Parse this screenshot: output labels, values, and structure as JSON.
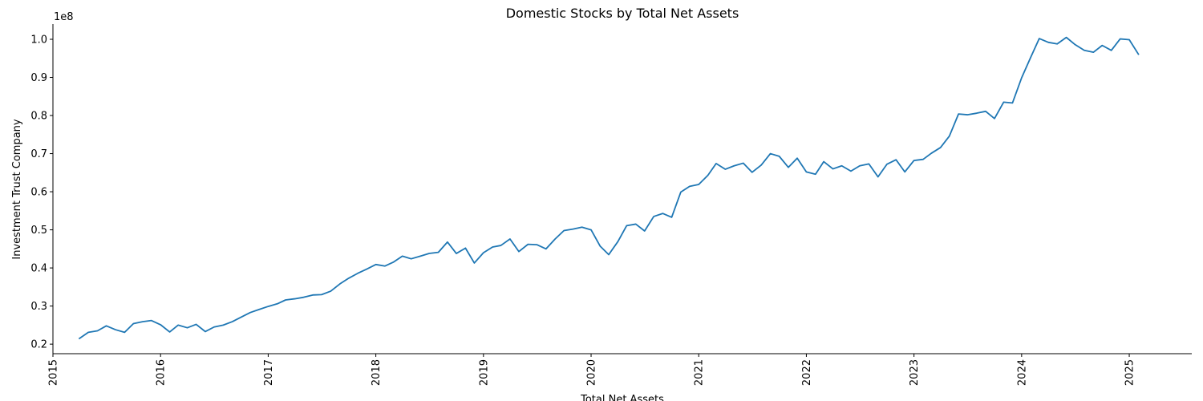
{
  "chart_data": {
    "type": "line",
    "title": "Domestic Stocks by Total Net Assets",
    "xlabel": "Total Net Assets",
    "ylabel": "Investment Trust Company",
    "y_offset_label": "1e8",
    "grid": false,
    "xlim": [
      "2015-01-01",
      "2025-08-01"
    ],
    "ylim": [
      17500000,
      104000000
    ],
    "x_ticks": [
      "2015",
      "2016",
      "2017",
      "2018",
      "2019",
      "2020",
      "2021",
      "2022",
      "2023",
      "2024",
      "2025"
    ],
    "y_ticks": [
      {
        "value": 20000000,
        "label": "0.2"
      },
      {
        "value": 30000000,
        "label": "0.3"
      },
      {
        "value": 40000000,
        "label": "0.4"
      },
      {
        "value": 50000000,
        "label": "0.5"
      },
      {
        "value": 60000000,
        "label": "0.6"
      },
      {
        "value": 70000000,
        "label": "0.7"
      },
      {
        "value": 80000000,
        "label": "0.8"
      },
      {
        "value": 90000000,
        "label": "0.9"
      },
      {
        "value": 100000000,
        "label": "1.0"
      }
    ],
    "series": [
      {
        "color": "#1f77b4",
        "points": [
          [
            "2015-04",
            21500000
          ],
          [
            "2015-05",
            23100000
          ],
          [
            "2015-06",
            23500000
          ],
          [
            "2015-07",
            24800000
          ],
          [
            "2015-08",
            23800000
          ],
          [
            "2015-09",
            23100000
          ],
          [
            "2015-10",
            25400000
          ],
          [
            "2015-11",
            25900000
          ],
          [
            "2015-12",
            26200000
          ],
          [
            "2016-01",
            25100000
          ],
          [
            "2016-02",
            23200000
          ],
          [
            "2016-03",
            25000000
          ],
          [
            "2016-04",
            24300000
          ],
          [
            "2016-05",
            25200000
          ],
          [
            "2016-06",
            23300000
          ],
          [
            "2016-07",
            24500000
          ],
          [
            "2016-08",
            25000000
          ],
          [
            "2016-09",
            25900000
          ],
          [
            "2016-10",
            27100000
          ],
          [
            "2016-11",
            28300000
          ],
          [
            "2016-12",
            29100000
          ],
          [
            "2017-01",
            29900000
          ],
          [
            "2017-02",
            30600000
          ],
          [
            "2017-03",
            31600000
          ],
          [
            "2017-04",
            31900000
          ],
          [
            "2017-05",
            32300000
          ],
          [
            "2017-06",
            32900000
          ],
          [
            "2017-07",
            33000000
          ],
          [
            "2017-08",
            33900000
          ],
          [
            "2017-09",
            35800000
          ],
          [
            "2017-10",
            37300000
          ],
          [
            "2017-11",
            38600000
          ],
          [
            "2017-12",
            39700000
          ],
          [
            "2018-01",
            40900000
          ],
          [
            "2018-02",
            40500000
          ],
          [
            "2018-03",
            41500000
          ],
          [
            "2018-04",
            43100000
          ],
          [
            "2018-05",
            42400000
          ],
          [
            "2018-06",
            43100000
          ],
          [
            "2018-07",
            43800000
          ],
          [
            "2018-08",
            44100000
          ],
          [
            "2018-09",
            46800000
          ],
          [
            "2018-10",
            43800000
          ],
          [
            "2018-11",
            45200000
          ],
          [
            "2018-12",
            41300000
          ],
          [
            "2019-01",
            44000000
          ],
          [
            "2019-02",
            45500000
          ],
          [
            "2019-03",
            45900000
          ],
          [
            "2019-04",
            47600000
          ],
          [
            "2019-05",
            44300000
          ],
          [
            "2019-06",
            46200000
          ],
          [
            "2019-07",
            46100000
          ],
          [
            "2019-08",
            45000000
          ],
          [
            "2019-09",
            47600000
          ],
          [
            "2019-10",
            49800000
          ],
          [
            "2019-11",
            50200000
          ],
          [
            "2019-12",
            50700000
          ],
          [
            "2020-01",
            50000000
          ],
          [
            "2020-02",
            45700000
          ],
          [
            "2020-03",
            43500000
          ],
          [
            "2020-04",
            46900000
          ],
          [
            "2020-05",
            51100000
          ],
          [
            "2020-06",
            51500000
          ],
          [
            "2020-07",
            49700000
          ],
          [
            "2020-08",
            53500000
          ],
          [
            "2020-09",
            54300000
          ],
          [
            "2020-10",
            53300000
          ],
          [
            "2020-11",
            59900000
          ],
          [
            "2020-12",
            61400000
          ],
          [
            "2021-01",
            61900000
          ],
          [
            "2021-02",
            64300000
          ],
          [
            "2021-03",
            67400000
          ],
          [
            "2021-04",
            65900000
          ],
          [
            "2021-05",
            66800000
          ],
          [
            "2021-06",
            67500000
          ],
          [
            "2021-07",
            65100000
          ],
          [
            "2021-08",
            67000000
          ],
          [
            "2021-09",
            70000000
          ],
          [
            "2021-10",
            69300000
          ],
          [
            "2021-11",
            66400000
          ],
          [
            "2021-12",
            68800000
          ],
          [
            "2022-01",
            65200000
          ],
          [
            "2022-02",
            64600000
          ],
          [
            "2022-03",
            67900000
          ],
          [
            "2022-04",
            66000000
          ],
          [
            "2022-05",
            66800000
          ],
          [
            "2022-06",
            65400000
          ],
          [
            "2022-07",
            66800000
          ],
          [
            "2022-08",
            67300000
          ],
          [
            "2022-09",
            63900000
          ],
          [
            "2022-10",
            67200000
          ],
          [
            "2022-11",
            68400000
          ],
          [
            "2022-12",
            65200000
          ],
          [
            "2023-01",
            68200000
          ],
          [
            "2023-02",
            68500000
          ],
          [
            "2023-03",
            70100000
          ],
          [
            "2023-04",
            71600000
          ],
          [
            "2023-05",
            74600000
          ],
          [
            "2023-06",
            80400000
          ],
          [
            "2023-07",
            80200000
          ],
          [
            "2023-08",
            80600000
          ],
          [
            "2023-09",
            81100000
          ],
          [
            "2023-10",
            79200000
          ],
          [
            "2023-11",
            83500000
          ],
          [
            "2023-12",
            83300000
          ],
          [
            "2024-01",
            89900000
          ],
          [
            "2024-02",
            95300000
          ],
          [
            "2024-03",
            100200000
          ],
          [
            "2024-04",
            99200000
          ],
          [
            "2024-05",
            98800000
          ],
          [
            "2024-06",
            100500000
          ],
          [
            "2024-07",
            98600000
          ],
          [
            "2024-08",
            97100000
          ],
          [
            "2024-09",
            96600000
          ],
          [
            "2024-10",
            98400000
          ],
          [
            "2024-11",
            97100000
          ],
          [
            "2024-12",
            100100000
          ],
          [
            "2025-01",
            99900000
          ],
          [
            "2025-02",
            96100000
          ]
        ]
      }
    ]
  }
}
